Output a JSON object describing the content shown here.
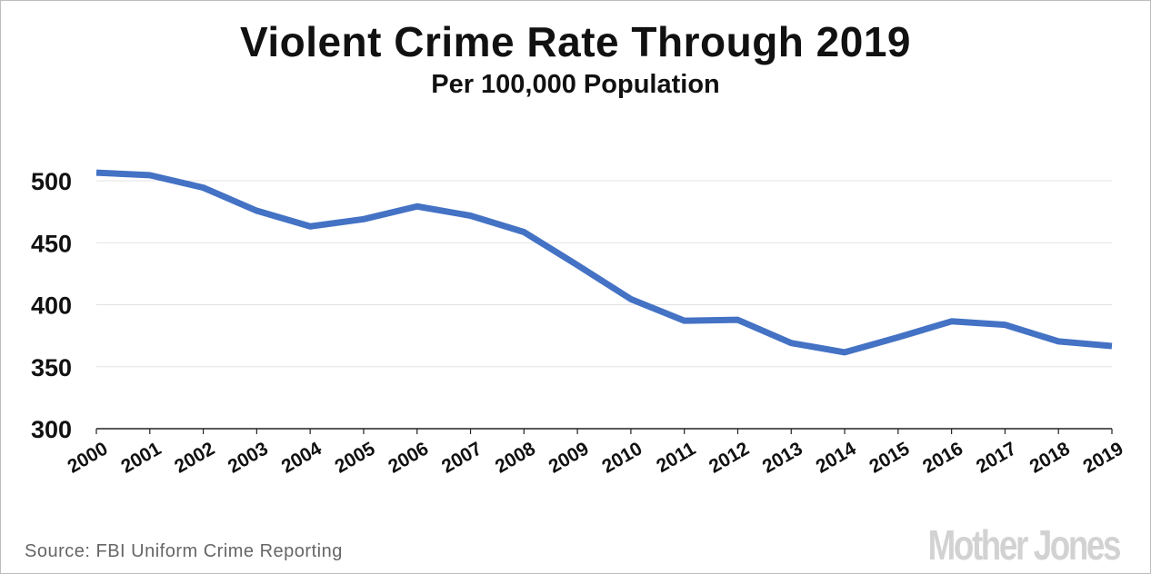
{
  "chart_data": {
    "type": "line",
    "title": "Violent Crime Rate Through 2019",
    "subtitle": "Per 100,000 Population",
    "xlabel": "",
    "ylabel": "",
    "x": [
      "2000",
      "2001",
      "2002",
      "2003",
      "2004",
      "2005",
      "2006",
      "2007",
      "2008",
      "2009",
      "2010",
      "2011",
      "2012",
      "2013",
      "2014",
      "2015",
      "2016",
      "2017",
      "2018",
      "2019"
    ],
    "values": [
      506.5,
      504.5,
      494.4,
      475.8,
      463.2,
      469.0,
      479.3,
      471.8,
      458.6,
      431.9,
      404.5,
      387.1,
      387.8,
      369.1,
      361.6,
      373.7,
      386.6,
      383.8,
      370.4,
      366.7
    ],
    "ylim": [
      300,
      520
    ],
    "yticks": [
      "300",
      "350",
      "400",
      "450",
      "500"
    ],
    "grid": true,
    "line_color": "#4472C4"
  },
  "source": "Source: FBI Uniform Crime Reporting",
  "logo": "Mother Jones"
}
